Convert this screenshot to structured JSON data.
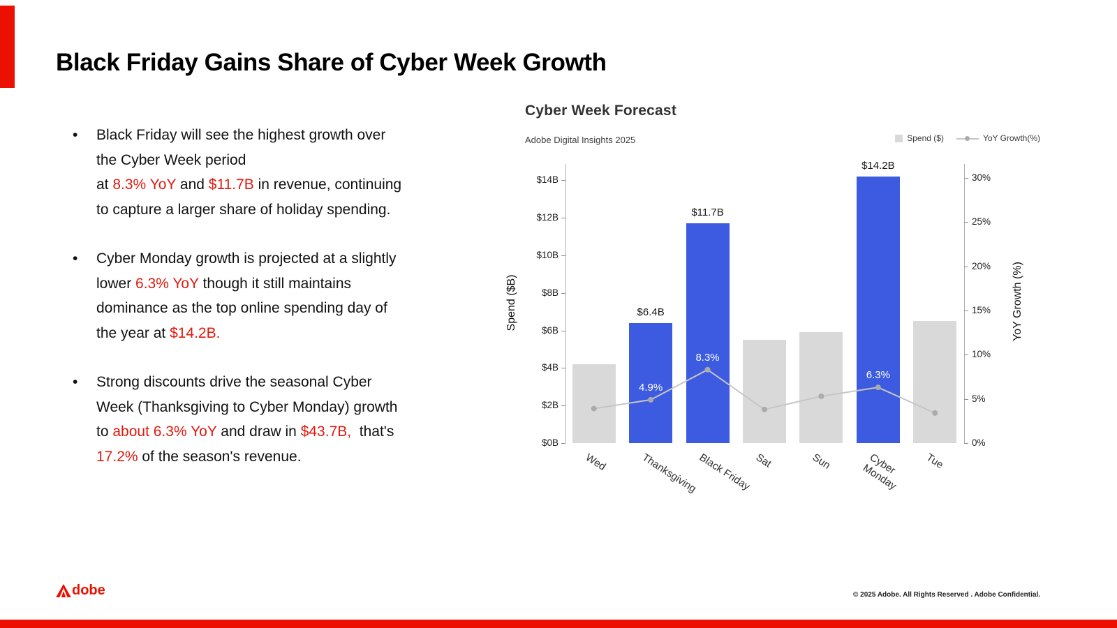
{
  "colors": {
    "brand_red": "#EB1000",
    "text_red": "#E2190D",
    "bar_blue": "#3D5BE0",
    "bar_gray": "#D9D9D9",
    "line_gray": "#C6C6C6",
    "dot_gray": "#ABABAB"
  },
  "slide": {
    "title": "Black Friday Gains Share of Cyber Week Growth",
    "bullets": [
      {
        "segments": [
          {
            "text": "Black Friday will see the highest growth over\nthe Cyber Week period\nat ",
            "highlight": false
          },
          {
            "text": "8.3% YoY",
            "highlight": true
          },
          {
            "text": " and ",
            "highlight": false
          },
          {
            "text": "$11.7B",
            "highlight": true
          },
          {
            "text": " in revenue, continuing\nto capture a larger share of holiday spending.",
            "highlight": false
          }
        ]
      },
      {
        "segments": [
          {
            "text": "Cyber Monday growth is projected at a slightly\nlower ",
            "highlight": false
          },
          {
            "text": "6.3% YoY",
            "highlight": true
          },
          {
            "text": " though it still maintains\ndominance as the top online spending day of\nthe year at ",
            "highlight": false
          },
          {
            "text": "$14.2B.",
            "highlight": true
          }
        ]
      },
      {
        "segments": [
          {
            "text": "Strong discounts drive the seasonal Cyber\nWeek (Thanksgiving to Cyber Monday) growth\nto ",
            "highlight": false
          },
          {
            "text": "about 6.3% YoY",
            "highlight": true
          },
          {
            "text": " and draw in ",
            "highlight": false
          },
          {
            "text": "$43.7B,",
            "highlight": true
          },
          {
            "text": "  that's\n",
            "highlight": false
          },
          {
            "text": "17.2%",
            "highlight": true
          },
          {
            "text": " of the season's revenue.",
            "highlight": false
          }
        ]
      }
    ]
  },
  "footer": {
    "logo_text": "Adobe",
    "copyright": "© 2025 Adobe. All Rights Reserved . Adobe Confidential."
  },
  "chart_data": {
    "type": "bar+line",
    "title": "Cyber Week Forecast",
    "subtitle": "Adobe Digital Insights 2025",
    "legend": [
      {
        "label": "Spend ($)",
        "marker": "square"
      },
      {
        "label": "YoY Growth(%)",
        "marker": "line-dot"
      }
    ],
    "categories": [
      "Wed",
      "Thanksgiving",
      "Black Friday",
      "Sat",
      "Sun",
      "Cyber\nMonday",
      "Tue"
    ],
    "series": [
      {
        "name": "Spend ($)",
        "type": "bar",
        "unit": "$B",
        "values": [
          4.2,
          6.4,
          11.7,
          5.5,
          5.9,
          14.2,
          6.5
        ],
        "highlighted": [
          false,
          true,
          true,
          false,
          false,
          true,
          false
        ],
        "data_labels": [
          "",
          "$6.4B",
          "$11.7B",
          "",
          "",
          "$14.2B",
          ""
        ]
      },
      {
        "name": "YoY Growth(%)",
        "type": "line",
        "unit": "%",
        "values": [
          3.9,
          4.9,
          8.3,
          3.8,
          5.3,
          6.3,
          3.4
        ],
        "data_labels": [
          "",
          "4.9%",
          "8.3%",
          "",
          "",
          "6.3%",
          ""
        ]
      }
    ],
    "y_left": {
      "title": "Spend ($B)",
      "tick_values": [
        0,
        2,
        4,
        6,
        8,
        10,
        12,
        14
      ],
      "tick_labels": [
        "$0B",
        "$2B",
        "$4B",
        "$6B",
        "$8B",
        "$10B",
        "$12B",
        "$14B"
      ]
    },
    "y_right": {
      "title": "YoY Growth (%)",
      "tick_values": [
        0,
        5,
        10,
        15,
        20,
        25,
        30
      ],
      "tick_labels": [
        "0%",
        "5%",
        "10%",
        "15%",
        "20%",
        "25%",
        "30%"
      ]
    },
    "x_label_rotation_deg": 33,
    "grid": false,
    "legend_position": "top-right"
  }
}
